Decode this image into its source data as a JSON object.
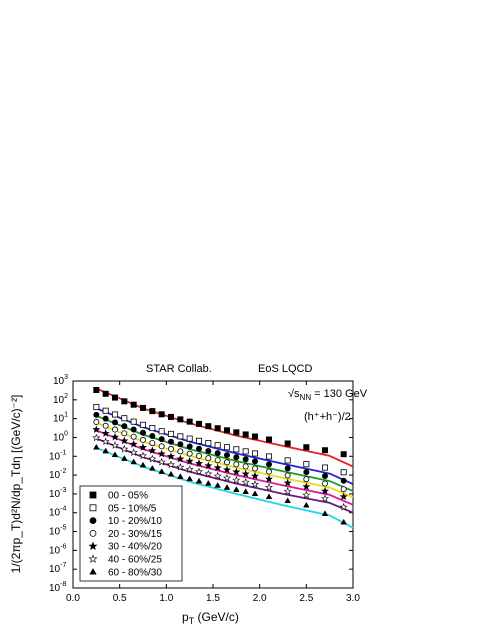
{
  "chart_data": {
    "type": "scatter",
    "title_left": "STAR Collab.",
    "title_right": "EoS LQCD",
    "energy_label": "√s",
    "energy_sub": "NN",
    "energy_value": " = 130 GeV",
    "particle_label": "(h⁺+h⁻)/2",
    "xlabel": "p",
    "xlabel_sub": "T",
    "xlabel_unit": " (GeV/c)",
    "ylabel": "1/(2πp_T)d²N/dp_Tdη [(GeV/c)⁻²]",
    "xlim": [
      0.0,
      3.0
    ],
    "ylim_log10": [
      -8,
      3
    ],
    "y_scale": "log",
    "x_ticks": [
      "0.0",
      "0.5",
      "1.0",
      "1.5",
      "2.0",
      "2.5",
      "3.0"
    ],
    "y_ticks": [
      {
        "mant": "10",
        "exp": "3",
        "val": 3
      },
      {
        "mant": "10",
        "exp": "2",
        "val": 2
      },
      {
        "mant": "10",
        "exp": "1",
        "val": 1
      },
      {
        "mant": "10",
        "exp": "0",
        "val": 0
      },
      {
        "mant": "10",
        "exp": "-1",
        "val": -1
      },
      {
        "mant": "10",
        "exp": "-2",
        "val": -2
      },
      {
        "mant": "10",
        "exp": "-3",
        "val": -3
      },
      {
        "mant": "10",
        "exp": "-4",
        "val": -4
      },
      {
        "mant": "10",
        "exp": "-5",
        "val": -5
      },
      {
        "mant": "10",
        "exp": "-6",
        "val": -6
      },
      {
        "mant": "10",
        "exp": "-7",
        "val": -7
      },
      {
        "mant": "10",
        "exp": "-8",
        "val": -8
      }
    ],
    "legend_position": "bottom-left",
    "x": [
      0.25,
      0.35,
      0.45,
      0.55,
      0.65,
      0.75,
      0.85,
      0.95,
      1.05,
      1.15,
      1.25,
      1.35,
      1.45,
      1.55,
      1.65,
      1.75,
      1.85,
      1.95,
      2.1,
      2.3,
      2.5,
      2.7,
      2.9
    ],
    "series": [
      {
        "name": "00 - 05%",
        "marker": "square-filled",
        "line_color": "#e8201f",
        "values_log10": [
          2.52,
          2.32,
          2.12,
          1.92,
          1.74,
          1.57,
          1.4,
          1.23,
          1.09,
          0.96,
          0.84,
          0.72,
          0.6,
          0.49,
          0.38,
          0.27,
          0.16,
          0.05,
          -0.11,
          -0.32,
          -0.52,
          -0.68,
          -0.89
        ],
        "curve_log10": [
          2.6,
          1.55,
          0.75,
          0.1,
          -0.45,
          -0.98,
          -1.55
        ]
      },
      {
        "name": "05 - 10%/5",
        "marker": "square-open",
        "line_color": "#1c24d8",
        "values_log10": [
          1.62,
          1.42,
          1.22,
          1.02,
          0.84,
          0.67,
          0.5,
          0.33,
          0.19,
          0.06,
          -0.06,
          -0.18,
          -0.3,
          -0.41,
          -0.52,
          -0.63,
          -0.74,
          -0.85,
          -1.01,
          -1.22,
          -1.42,
          -1.6,
          -1.85
        ],
        "curve_log10": [
          1.55,
          0.55,
          -0.22,
          -0.85,
          -1.4,
          -1.92,
          -2.48
        ]
      },
      {
        "name": "10 - 20%/10",
        "marker": "circle-filled",
        "line_color": "#1f9a2a",
        "values_log10": [
          1.2,
          1.0,
          0.8,
          0.6,
          0.42,
          0.25,
          0.08,
          -0.09,
          -0.23,
          -0.36,
          -0.48,
          -0.6,
          -0.72,
          -0.83,
          -0.94,
          -1.05,
          -1.16,
          -1.27,
          -1.43,
          -1.64,
          -1.84,
          -2.05,
          -2.3
        ],
        "curve_log10": [
          1.15,
          0.15,
          -0.62,
          -1.25,
          -1.8,
          -2.32,
          -2.85
        ]
      },
      {
        "name": "20 - 30%/15",
        "marker": "circle-open",
        "line_color": "#e6dc16",
        "values_log10": [
          0.82,
          0.62,
          0.42,
          0.22,
          0.04,
          -0.13,
          -0.3,
          -0.47,
          -0.61,
          -0.74,
          -0.86,
          -0.98,
          -1.1,
          -1.21,
          -1.32,
          -1.43,
          -1.54,
          -1.65,
          -1.81,
          -2.02,
          -2.22,
          -2.45,
          -2.75
        ],
        "curve_log10": [
          0.78,
          -0.22,
          -0.98,
          -1.6,
          -2.15,
          -2.66,
          -3.18
        ]
      },
      {
        "name": "30 - 40%/20",
        "marker": "star-filled",
        "line_color": "#e0169c",
        "values_log10": [
          0.42,
          0.22,
          0.02,
          -0.18,
          -0.36,
          -0.53,
          -0.7,
          -0.87,
          -1.01,
          -1.14,
          -1.26,
          -1.38,
          -1.5,
          -1.61,
          -1.72,
          -1.83,
          -1.94,
          -2.05,
          -2.21,
          -2.42,
          -2.62,
          -2.85,
          -3.15
        ],
        "curve_log10": [
          0.38,
          -0.62,
          -1.38,
          -2.0,
          -2.55,
          -3.05,
          -3.58
        ]
      },
      {
        "name": "40 - 60%/25",
        "marker": "star-open",
        "line_color": "#6a1a80",
        "values_log10": [
          -0.02,
          -0.22,
          -0.42,
          -0.62,
          -0.8,
          -0.97,
          -1.14,
          -1.31,
          -1.45,
          -1.58,
          -1.7,
          -1.82,
          -1.94,
          -2.05,
          -2.16,
          -2.27,
          -2.38,
          -2.49,
          -2.65,
          -2.86,
          -3.06,
          -3.25,
          -3.7
        ],
        "curve_log10": [
          -0.05,
          -1.05,
          -1.82,
          -2.45,
          -3.0,
          -3.48,
          -4.0
        ]
      },
      {
        "name": "60 - 80%/30",
        "marker": "triangle-filled",
        "line_color": "#22d8dc",
        "values_log10": [
          -0.52,
          -0.72,
          -0.92,
          -1.12,
          -1.3,
          -1.47,
          -1.64,
          -1.81,
          -1.95,
          -2.08,
          -2.2,
          -2.32,
          -2.44,
          -2.55,
          -2.66,
          -2.77,
          -2.88,
          -2.99,
          -3.15,
          -3.36,
          -3.6,
          -4.05,
          -4.5
        ],
        "curve_log10": [
          -0.55,
          -1.55,
          -2.35,
          -3.0,
          -3.6,
          -4.15,
          -4.8
        ]
      }
    ],
    "curve_x": [
      0.25,
      0.75,
      1.25,
      1.75,
      2.25,
      2.75,
      3.0
    ]
  }
}
